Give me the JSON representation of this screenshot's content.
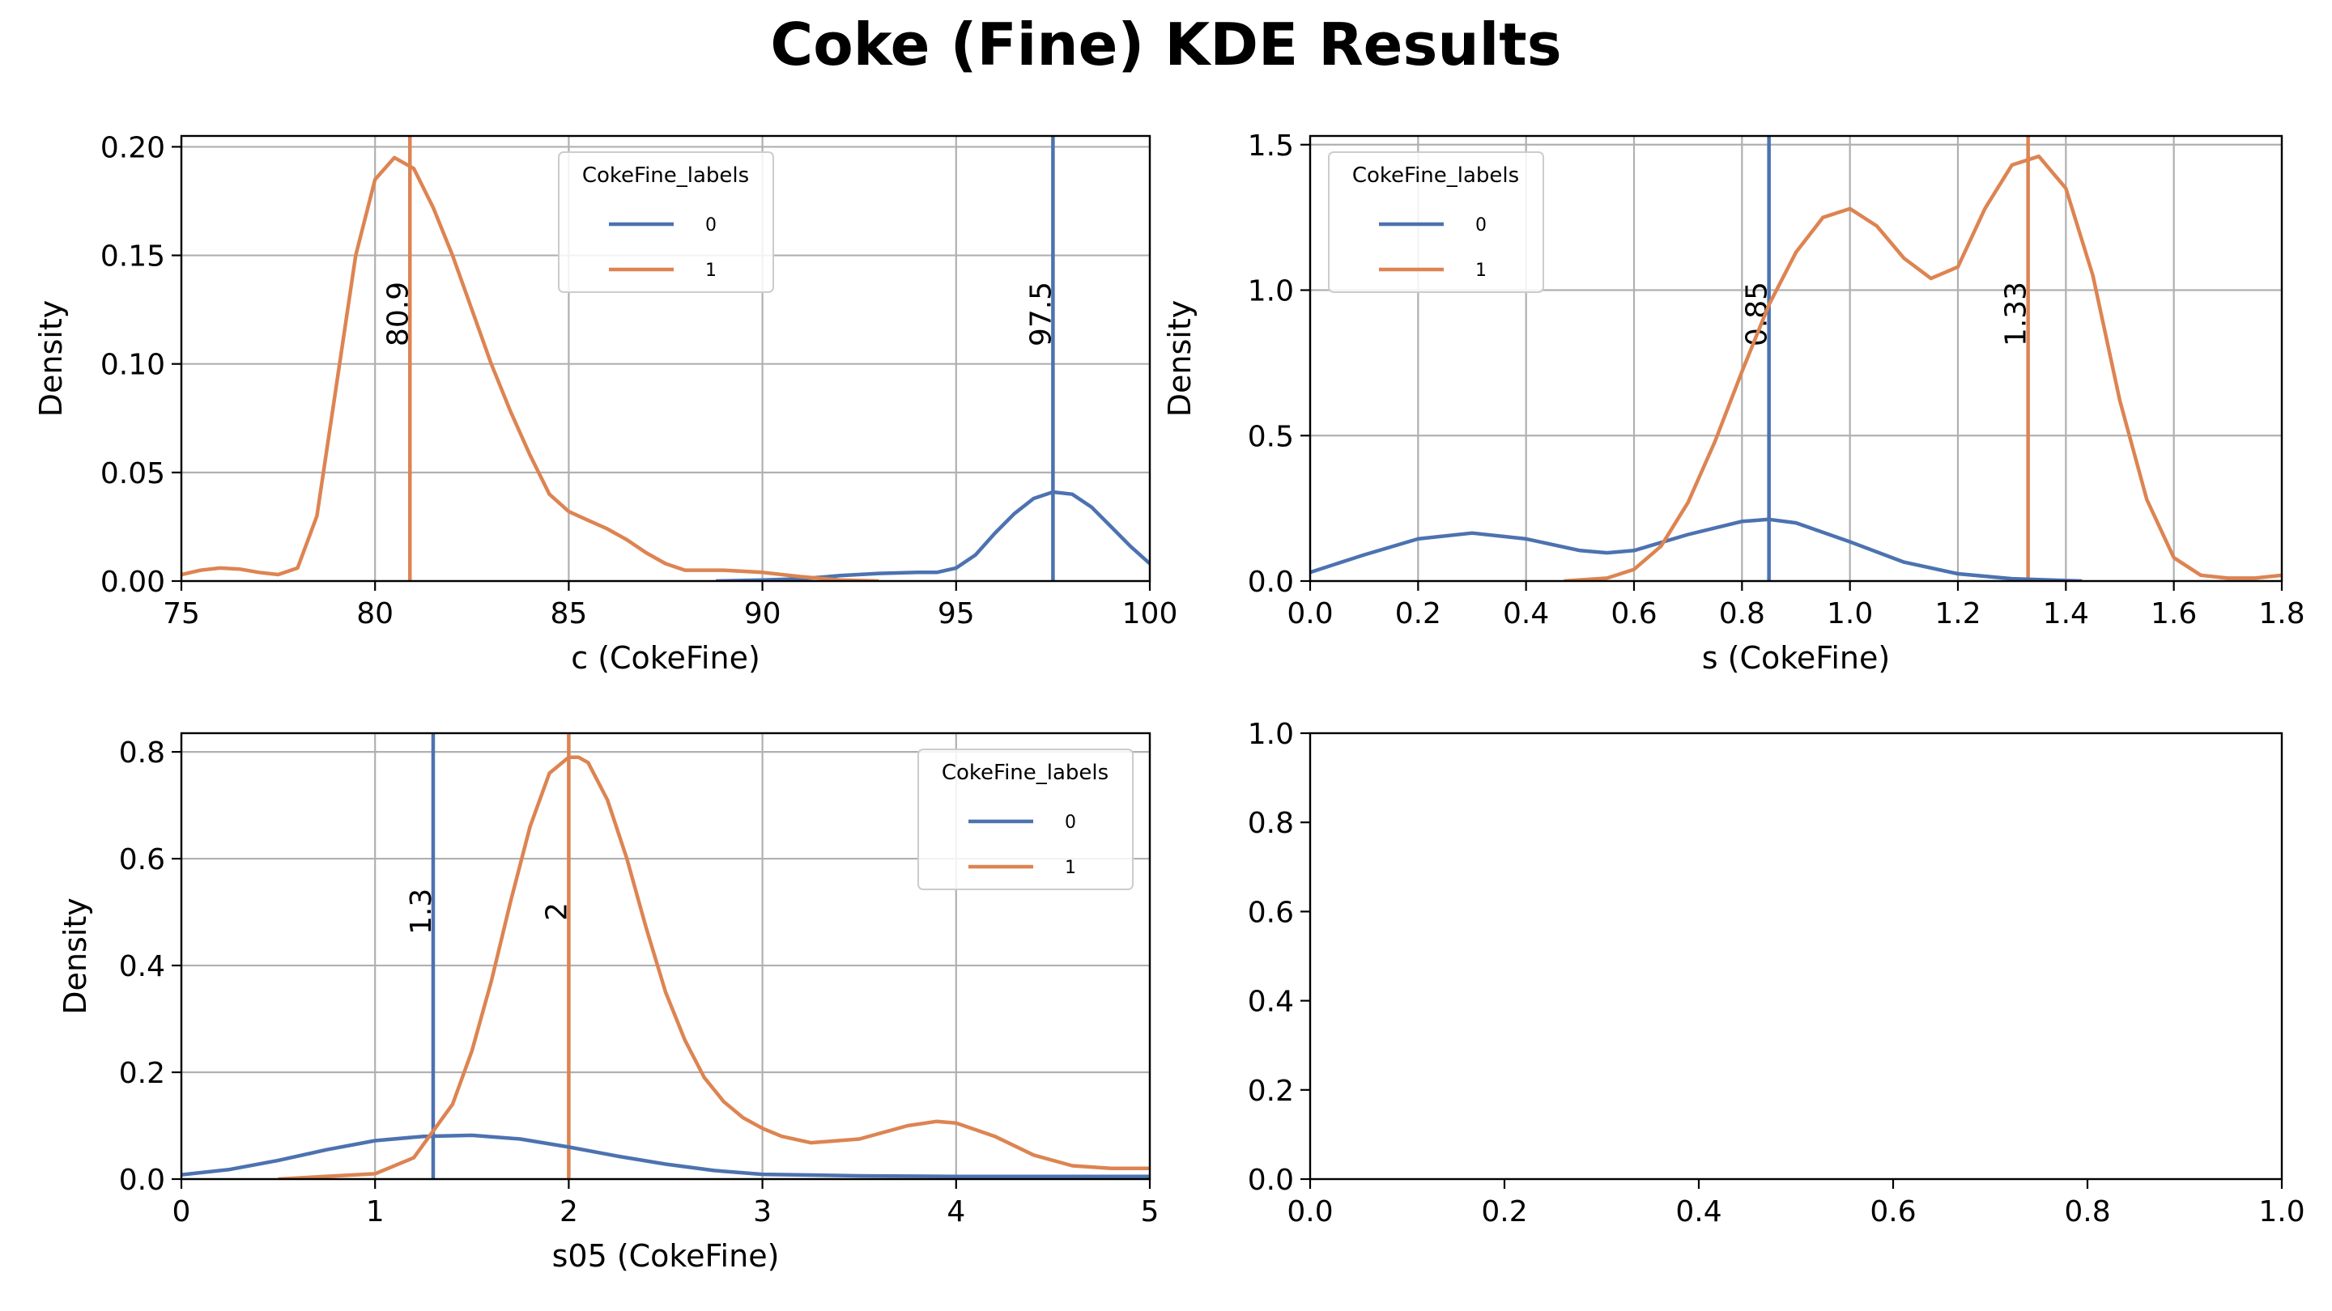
{
  "figure": {
    "title": "Coke (Fine) KDE Results"
  },
  "colors": {
    "label_0": "#4c72b0",
    "label_1": "#dd8452",
    "grid": "#b0b0b0",
    "axes": "#000000"
  },
  "chart_data": [
    {
      "type": "line",
      "xlabel": "c (CokeFine)",
      "ylabel": "Density",
      "xlim": [
        75,
        100
      ],
      "ylim": [
        0,
        0.205
      ],
      "xticks": [
        75,
        80,
        85,
        90,
        95,
        100
      ],
      "xtick_labels": [
        "75",
        "80",
        "85",
        "90",
        "95",
        "100"
      ],
      "yticks": [
        0,
        0.05,
        0.1,
        0.15,
        0.2
      ],
      "ytick_labels": [
        "0.00",
        "0.05",
        "0.10",
        "0.15",
        "0.20"
      ],
      "grid": true,
      "legend": {
        "title": "CokeFine_labels",
        "placement": "upper-center",
        "entries": [
          "0",
          "1"
        ]
      },
      "series": [
        {
          "name": "0",
          "color": "#4c72b0",
          "x": [
            88.8,
            90,
            91,
            92,
            93,
            94,
            94.5,
            95,
            95.5,
            96,
            96.5,
            97,
            97.5,
            98,
            98.5,
            99,
            99.5,
            100
          ],
          "y": [
            0.0,
            0.0005,
            0.001,
            0.0025,
            0.0035,
            0.004,
            0.004,
            0.006,
            0.012,
            0.022,
            0.031,
            0.038,
            0.041,
            0.04,
            0.034,
            0.025,
            0.016,
            0.008
          ]
        },
        {
          "name": "1",
          "color": "#dd8452",
          "x": [
            75,
            75.5,
            76,
            76.5,
            77,
            77.5,
            78,
            78.5,
            79,
            79.5,
            80,
            80.5,
            81,
            81.5,
            82,
            82.5,
            83,
            83.5,
            84,
            84.5,
            85,
            85.5,
            86,
            86.5,
            87,
            87.5,
            88,
            88.5,
            89,
            90,
            91,
            92,
            93
          ],
          "y": [
            0.003,
            0.005,
            0.006,
            0.0055,
            0.004,
            0.003,
            0.006,
            0.03,
            0.09,
            0.15,
            0.185,
            0.195,
            0.19,
            0.172,
            0.15,
            0.125,
            0.1,
            0.078,
            0.058,
            0.04,
            0.032,
            0.028,
            0.024,
            0.019,
            0.013,
            0.008,
            0.005,
            0.005,
            0.005,
            0.004,
            0.002,
            0.0005,
            0.0
          ]
        }
      ],
      "vlines": [
        {
          "x": 80.9,
          "label": "80.9",
          "color": "#dd8452"
        },
        {
          "x": 97.5,
          "label": "97.5",
          "color": "#4c72b0"
        }
      ]
    },
    {
      "type": "line",
      "xlabel": "s (CokeFine)",
      "ylabel": "Density",
      "xlim": [
        0,
        1.8
      ],
      "ylim": [
        0,
        1.53
      ],
      "xticks": [
        0,
        0.2,
        0.4,
        0.6,
        0.8,
        1.0,
        1.2,
        1.4,
        1.6,
        1.8
      ],
      "xtick_labels": [
        "0.0",
        "0.2",
        "0.4",
        "0.6",
        "0.8",
        "1.0",
        "1.2",
        "1.4",
        "1.6",
        "1.8"
      ],
      "yticks": [
        0,
        0.5,
        1.0,
        1.5
      ],
      "ytick_labels": [
        "0.0",
        "0.5",
        "1.0",
        "1.5"
      ],
      "grid": true,
      "legend": {
        "title": "CokeFine_labels",
        "placement": "upper-left",
        "entries": [
          "0",
          "1"
        ]
      },
      "series": [
        {
          "name": "0",
          "color": "#4c72b0",
          "x": [
            0,
            0.1,
            0.2,
            0.3,
            0.4,
            0.5,
            0.55,
            0.6,
            0.7,
            0.8,
            0.85,
            0.9,
            1.0,
            1.1,
            1.2,
            1.3,
            1.43
          ],
          "y": [
            0.03,
            0.09,
            0.145,
            0.165,
            0.145,
            0.105,
            0.097,
            0.105,
            0.16,
            0.205,
            0.212,
            0.2,
            0.135,
            0.065,
            0.025,
            0.008,
            0.0
          ]
        },
        {
          "name": "1",
          "color": "#dd8452",
          "x": [
            0.47,
            0.55,
            0.6,
            0.65,
            0.7,
            0.75,
            0.8,
            0.85,
            0.9,
            0.95,
            1.0,
            1.05,
            1.1,
            1.15,
            1.2,
            1.25,
            1.3,
            1.35,
            1.4,
            1.45,
            1.5,
            1.55,
            1.6,
            1.65,
            1.7,
            1.75,
            1.8
          ],
          "y": [
            0.0,
            0.01,
            0.04,
            0.12,
            0.27,
            0.48,
            0.72,
            0.95,
            1.13,
            1.25,
            1.28,
            1.22,
            1.11,
            1.04,
            1.08,
            1.28,
            1.43,
            1.46,
            1.35,
            1.05,
            0.62,
            0.28,
            0.08,
            0.02,
            0.01,
            0.01,
            0.02
          ]
        }
      ],
      "vlines": [
        {
          "x": 0.85,
          "label": "0.85",
          "color": "#4c72b0"
        },
        {
          "x": 1.33,
          "label": "1.33",
          "color": "#dd8452"
        }
      ]
    },
    {
      "type": "line",
      "xlabel": "s05 (CokeFine)",
      "ylabel": "Density",
      "xlim": [
        0,
        5
      ],
      "ylim": [
        0,
        0.835
      ],
      "xticks": [
        0,
        1,
        2,
        3,
        4,
        5
      ],
      "xtick_labels": [
        "0",
        "1",
        "2",
        "3",
        "4",
        "5"
      ],
      "yticks": [
        0,
        0.2,
        0.4,
        0.6,
        0.8
      ],
      "ytick_labels": [
        "0.0",
        "0.2",
        "0.4",
        "0.6",
        "0.8"
      ],
      "grid": true,
      "legend": {
        "title": "CokeFine_labels",
        "placement": "upper-right",
        "entries": [
          "0",
          "1"
        ]
      },
      "series": [
        {
          "name": "0",
          "color": "#4c72b0",
          "x": [
            0,
            0.25,
            0.5,
            0.75,
            1.0,
            1.25,
            1.5,
            1.75,
            2.0,
            2.25,
            2.5,
            2.75,
            3.0,
            3.5,
            4.0,
            4.5,
            5.0
          ],
          "y": [
            0.008,
            0.018,
            0.035,
            0.055,
            0.072,
            0.08,
            0.082,
            0.075,
            0.06,
            0.043,
            0.028,
            0.016,
            0.009,
            0.006,
            0.005,
            0.005,
            0.005
          ]
        },
        {
          "name": "1",
          "color": "#dd8452",
          "x": [
            0.5,
            1.0,
            1.2,
            1.4,
            1.5,
            1.6,
            1.7,
            1.8,
            1.9,
            2.0,
            2.05,
            2.1,
            2.2,
            2.3,
            2.4,
            2.5,
            2.6,
            2.7,
            2.8,
            2.9,
            3.0,
            3.1,
            3.25,
            3.5,
            3.75,
            3.9,
            4.0,
            4.2,
            4.4,
            4.6,
            4.8,
            5.0
          ],
          "y": [
            0.0,
            0.01,
            0.04,
            0.14,
            0.24,
            0.37,
            0.52,
            0.66,
            0.76,
            0.79,
            0.79,
            0.78,
            0.71,
            0.6,
            0.47,
            0.35,
            0.26,
            0.19,
            0.145,
            0.115,
            0.095,
            0.08,
            0.068,
            0.075,
            0.1,
            0.108,
            0.105,
            0.08,
            0.045,
            0.025,
            0.02,
            0.02
          ]
        }
      ],
      "vlines": [
        {
          "x": 1.3,
          "label": "1.3",
          "color": "#4c72b0"
        },
        {
          "x": 2.0,
          "label": "2",
          "color": "#dd8452"
        }
      ]
    },
    {
      "type": "line",
      "xlabel": "",
      "ylabel": "",
      "xlim": [
        0,
        1
      ],
      "ylim": [
        0,
        1
      ],
      "xticks": [
        0,
        0.2,
        0.4,
        0.6,
        0.8,
        1.0
      ],
      "xtick_labels": [
        "0.0",
        "0.2",
        "0.4",
        "0.6",
        "0.8",
        "1.0"
      ],
      "yticks": [
        0,
        0.2,
        0.4,
        0.6,
        0.8,
        1.0
      ],
      "ytick_labels": [
        "0.0",
        "0.2",
        "0.4",
        "0.6",
        "0.8",
        "1.0"
      ],
      "grid": false,
      "series": [],
      "vlines": []
    }
  ]
}
